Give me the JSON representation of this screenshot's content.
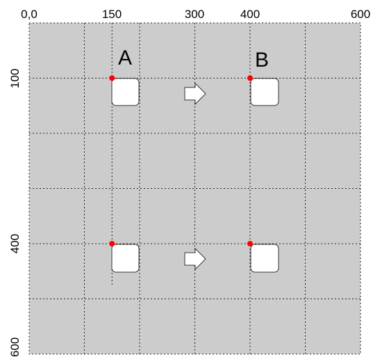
{
  "colors": {
    "canvas_bg": "#cccccc",
    "grid_line": "#222222",
    "box_fill": "#ffffff",
    "box_stroke": "#333333",
    "anchor_dot": "#ff0000",
    "arrow_fill": "#ffffff",
    "arrow_stroke": "#333333"
  },
  "axes": {
    "x_ticks": [
      {
        "value": 0,
        "label": "0,0"
      },
      {
        "value": 150,
        "label": "150"
      },
      {
        "value": 300,
        "label": "300"
      },
      {
        "value": 400,
        "label": "400"
      },
      {
        "value": 600,
        "label": "600"
      }
    ],
    "y_ticks": [
      {
        "value": 100,
        "label": "100"
      },
      {
        "value": 400,
        "label": "400"
      },
      {
        "value": 600,
        "label": "600"
      }
    ],
    "x_range": [
      0,
      600
    ],
    "y_range": [
      0,
      600
    ],
    "grid_step": 100
  },
  "labels": {
    "left_column": "A",
    "right_column": "B"
  },
  "anchor_points": [
    {
      "x": 150,
      "y": 100
    },
    {
      "x": 400,
      "y": 100
    },
    {
      "x": 150,
      "y": 400
    },
    {
      "x": 400,
      "y": 400
    }
  ],
  "arrows": [
    {
      "from": "A",
      "to": "B",
      "row_y": 100
    },
    {
      "from": "A",
      "to": "B",
      "row_y": 400
    }
  ]
}
